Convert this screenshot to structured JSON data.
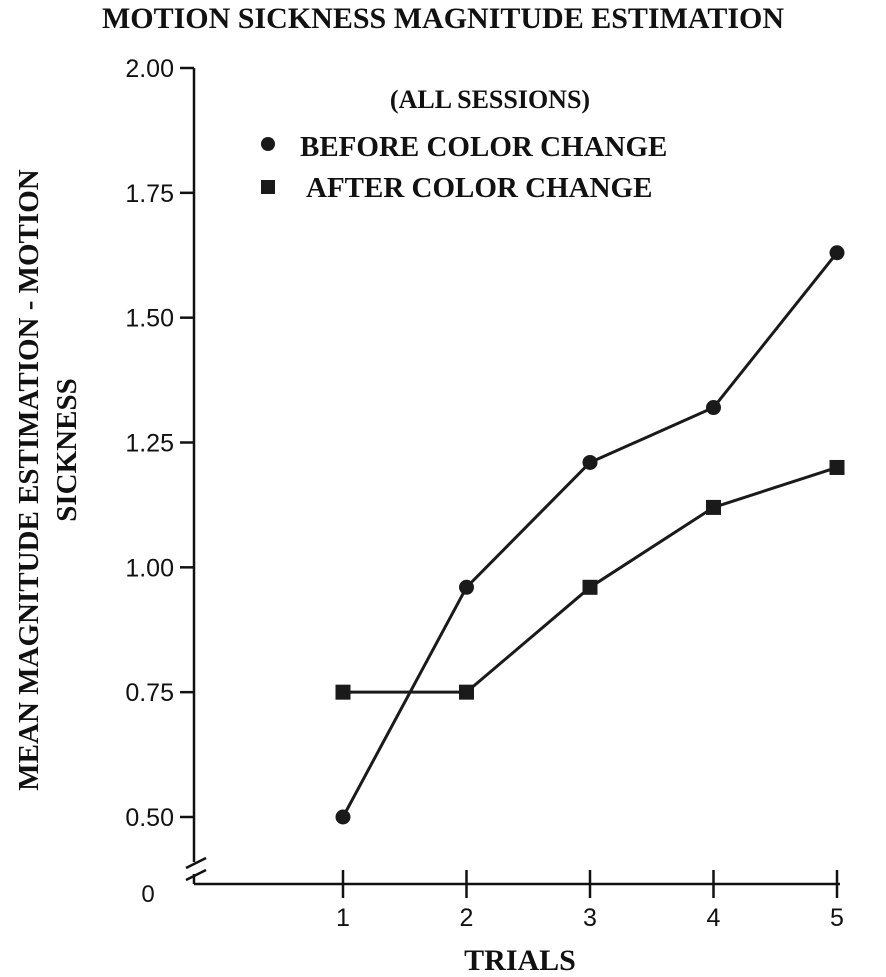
{
  "chart_data": {
    "type": "line",
    "title": "MOTION SICKNESS MAGNITUDE ESTIMATION",
    "subtitle": "(ALL SESSIONS)",
    "xlabel": "TRIALS",
    "ylabel_line1": "MEAN MAGNITUDE ESTIMATION - MOTION",
    "ylabel_line2": "SICKNESS",
    "x_ticks": [
      "1",
      "2",
      "3",
      "4",
      "5"
    ],
    "y_ticks": [
      "0.50",
      "0.75",
      "1.00",
      "1.25",
      "1.50",
      "1.75",
      "2.00"
    ],
    "y_origin_label": "0",
    "ylim": [
      0.5,
      2.0
    ],
    "axis_break": true,
    "grid": false,
    "legend_position": "top-center",
    "x": [
      1,
      2,
      3,
      4,
      5
    ],
    "series": [
      {
        "name": "BEFORE COLOR CHANGE",
        "marker": "circle",
        "values": [
          0.5,
          0.96,
          1.21,
          1.32,
          1.63
        ]
      },
      {
        "name": "AFTER COLOR CHANGE",
        "marker": "square",
        "values": [
          0.75,
          0.75,
          0.96,
          1.12,
          1.2
        ]
      }
    ]
  }
}
